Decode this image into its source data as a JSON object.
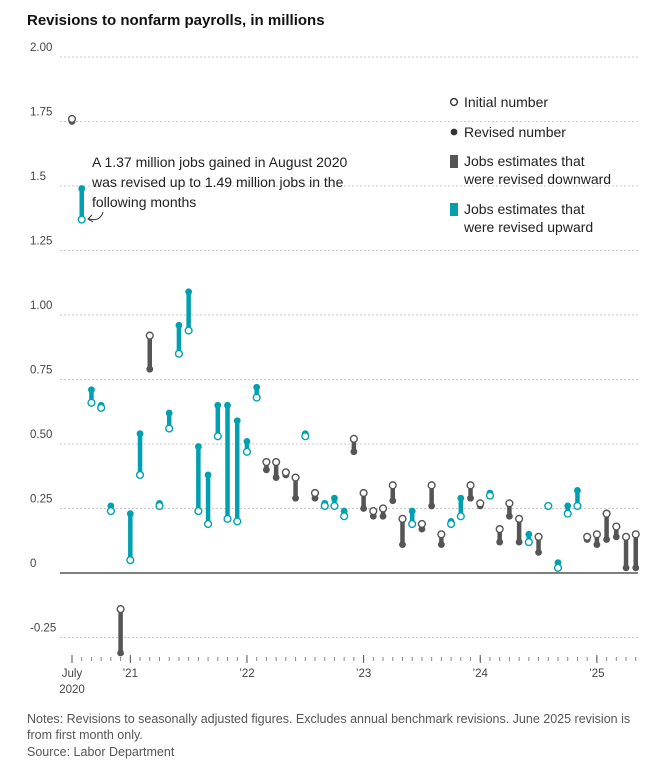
{
  "chart_data": {
    "type": "dumbbell",
    "title": "Revisions to nonfarm payrolls, in millions",
    "ylim": [
      -0.35,
      2.0
    ],
    "yticks": [
      {
        "value": 2.0,
        "label": "2.00"
      },
      {
        "value": 1.75,
        "label": "1.75"
      },
      {
        "value": 1.5,
        "label": "1.5"
      },
      {
        "value": 1.25,
        "label": "1.25"
      },
      {
        "value": 1.0,
        "label": "1.00"
      },
      {
        "value": 0.75,
        "label": "0.75"
      },
      {
        "value": 0.5,
        "label": "0.50"
      },
      {
        "value": 0.25,
        "label": "0.25"
      },
      {
        "value": 0,
        "label": "0"
      },
      {
        "value": -0.25,
        "label": "-0.25"
      }
    ],
    "xticks": [
      {
        "index": 0,
        "label": "July",
        "label2": "2020"
      },
      {
        "index": 6,
        "label": "’21"
      },
      {
        "index": 18,
        "label": "’22"
      },
      {
        "index": 30,
        "label": "’23"
      },
      {
        "index": 42,
        "label": "’24"
      },
      {
        "index": 54,
        "label": "’25"
      }
    ],
    "series_names": [
      "Initial number",
      "Revised number"
    ],
    "points": [
      {
        "month": "2020-07",
        "initial": 1.76,
        "revised": 1.75
      },
      {
        "month": "2020-08",
        "initial": 1.37,
        "revised": 1.49
      },
      {
        "month": "2020-09",
        "initial": 0.66,
        "revised": 0.71
      },
      {
        "month": "2020-10",
        "initial": 0.64,
        "revised": 0.65
      },
      {
        "month": "2020-11",
        "initial": 0.24,
        "revised": 0.26
      },
      {
        "month": "2020-12",
        "initial": -0.14,
        "revised": -0.31
      },
      {
        "month": "2021-01",
        "initial": 0.05,
        "revised": 0.23
      },
      {
        "month": "2021-02",
        "initial": 0.38,
        "revised": 0.54
      },
      {
        "month": "2021-03",
        "initial": 0.92,
        "revised": 0.79
      },
      {
        "month": "2021-04",
        "initial": 0.26,
        "revised": 0.27
      },
      {
        "month": "2021-05",
        "initial": 0.56,
        "revised": 0.62
      },
      {
        "month": "2021-06",
        "initial": 0.85,
        "revised": 0.96
      },
      {
        "month": "2021-07",
        "initial": 0.94,
        "revised": 1.09
      },
      {
        "month": "2021-08",
        "initial": 0.24,
        "revised": 0.49
      },
      {
        "month": "2021-09",
        "initial": 0.19,
        "revised": 0.38
      },
      {
        "month": "2021-10",
        "initial": 0.53,
        "revised": 0.65
      },
      {
        "month": "2021-11",
        "initial": 0.21,
        "revised": 0.65
      },
      {
        "month": "2021-12",
        "initial": 0.2,
        "revised": 0.59
      },
      {
        "month": "2022-01",
        "initial": 0.47,
        "revised": 0.51
      },
      {
        "month": "2022-02",
        "initial": 0.68,
        "revised": 0.72
      },
      {
        "month": "2022-03",
        "initial": 0.43,
        "revised": 0.4
      },
      {
        "month": "2022-04",
        "initial": 0.43,
        "revised": 0.37
      },
      {
        "month": "2022-05",
        "initial": 0.39,
        "revised": 0.38
      },
      {
        "month": "2022-06",
        "initial": 0.37,
        "revised": 0.29
      },
      {
        "month": "2022-07",
        "initial": 0.53,
        "revised": 0.54
      },
      {
        "month": "2022-08",
        "initial": 0.31,
        "revised": 0.29
      },
      {
        "month": "2022-09",
        "initial": 0.26,
        "revised": 0.27
      },
      {
        "month": "2022-10",
        "initial": 0.26,
        "revised": 0.29
      },
      {
        "month": "2022-11",
        "initial": 0.22,
        "revised": 0.24
      },
      {
        "month": "2022-12",
        "initial": 0.52,
        "revised": 0.47
      },
      {
        "month": "2023-01",
        "initial": 0.31,
        "revised": 0.25
      },
      {
        "month": "2023-02",
        "initial": 0.24,
        "revised": 0.22
      },
      {
        "month": "2023-03",
        "initial": 0.25,
        "revised": 0.22
      },
      {
        "month": "2023-04",
        "initial": 0.34,
        "revised": 0.28
      },
      {
        "month": "2023-05",
        "initial": 0.21,
        "revised": 0.11
      },
      {
        "month": "2023-06",
        "initial": 0.19,
        "revised": 0.24
      },
      {
        "month": "2023-07",
        "initial": 0.19,
        "revised": 0.17
      },
      {
        "month": "2023-08",
        "initial": 0.34,
        "revised": 0.26
      },
      {
        "month": "2023-09",
        "initial": 0.15,
        "revised": 0.11
      },
      {
        "month": "2023-10",
        "initial": 0.19,
        "revised": 0.2
      },
      {
        "month": "2023-11",
        "initial": 0.22,
        "revised": 0.29
      },
      {
        "month": "2023-12",
        "initial": 0.34,
        "revised": 0.29
      },
      {
        "month": "2024-01",
        "initial": 0.27,
        "revised": 0.26
      },
      {
        "month": "2024-02",
        "initial": 0.3,
        "revised": 0.31
      },
      {
        "month": "2024-03",
        "initial": 0.17,
        "revised": 0.12
      },
      {
        "month": "2024-04",
        "initial": 0.27,
        "revised": 0.22
      },
      {
        "month": "2024-05",
        "initial": 0.21,
        "revised": 0.12
      },
      {
        "month": "2024-06",
        "initial": 0.12,
        "revised": 0.15
      },
      {
        "month": "2024-07",
        "initial": 0.14,
        "revised": 0.08
      },
      {
        "month": "2024-08",
        "initial": 0.26,
        "revised": 0.26
      },
      {
        "month": "2024-09",
        "initial": 0.02,
        "revised": 0.04
      },
      {
        "month": "2024-10",
        "initial": 0.23,
        "revised": 0.26
      },
      {
        "month": "2024-11",
        "initial": 0.26,
        "revised": 0.32
      },
      {
        "month": "2024-12",
        "initial": 0.14,
        "revised": 0.13
      },
      {
        "month": "2025-01",
        "initial": 0.15,
        "revised": 0.11
      },
      {
        "month": "2025-02",
        "initial": 0.23,
        "revised": 0.13
      },
      {
        "month": "2025-03",
        "initial": 0.18,
        "revised": 0.14
      },
      {
        "month": "2025-04",
        "initial": 0.14,
        "revised": 0.02
      },
      {
        "month": "2025-05",
        "initial": 0.15,
        "revised": 0.02
      }
    ],
    "annotation": {
      "lines": [
        "A 1.37 million jobs gained in August 2020",
        "was revised up to 1.49 million jobs in the",
        "following months"
      ]
    },
    "legend": {
      "placement": "right",
      "items": [
        {
          "symbol": "open-circle",
          "label": "Initial number"
        },
        {
          "symbol": "filled-circle",
          "label": "Revised number"
        },
        {
          "symbol": "gray-bar",
          "label_lines": [
            "Jobs estimates that",
            "were revised downward"
          ]
        },
        {
          "symbol": "teal-bar",
          "label_lines": [
            "Jobs estimates that",
            "were revised upward"
          ]
        }
      ]
    },
    "colors": {
      "up": "#00a0b0",
      "down": "#555555",
      "grid": "#c8c8c8",
      "axis": "#333333"
    }
  },
  "notes": "Notes: Revisions to seasonally adjusted figures. Excludes annual benchmark revisions. June 2025 revision is from first month only.",
  "source": "Source: Labor Department"
}
